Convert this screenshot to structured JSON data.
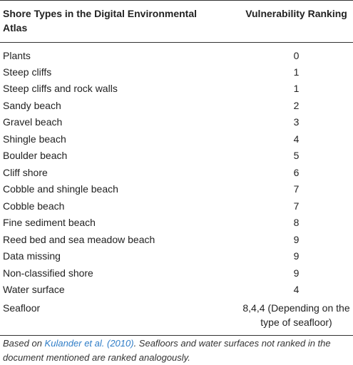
{
  "table": {
    "header": {
      "col1": "Shore Types in the Digital Environmental Atlas",
      "col2": "Vulnerability Ranking"
    },
    "rows": [
      {
        "type": "Plants",
        "rank": "0"
      },
      {
        "type": "Steep cliffs",
        "rank": "1"
      },
      {
        "type": "Steep cliffs and rock walls",
        "rank": "1"
      },
      {
        "type": "Sandy beach",
        "rank": "2"
      },
      {
        "type": "Gravel beach",
        "rank": "3"
      },
      {
        "type": "Shingle beach",
        "rank": "4"
      },
      {
        "type": "Boulder beach",
        "rank": "5"
      },
      {
        "type": "Cliff shore",
        "rank": "6"
      },
      {
        "type": "Cobble and shingle beach",
        "rank": "7"
      },
      {
        "type": "Cobble beach",
        "rank": "7"
      },
      {
        "type": "Fine sediment beach",
        "rank": "8"
      },
      {
        "type": "Reed bed and sea meadow beach",
        "rank": "9"
      },
      {
        "type": "Data missing",
        "rank": "9"
      },
      {
        "type": "Non-classified shore",
        "rank": "9"
      },
      {
        "type": "Water surface",
        "rank": "4"
      },
      {
        "type": "Seafloor",
        "rank": "8,4,4 (Depending on the type of seafloor)"
      }
    ]
  },
  "footnote": {
    "prefix": "Based on ",
    "link_text": "Kulander et al. (2010)",
    "suffix": ". Seafloors and water surfaces not ranked in the document mentioned are ranked analogously."
  },
  "colors": {
    "link": "#2f7dc7",
    "rule": "#333333",
    "text": "#222222"
  }
}
